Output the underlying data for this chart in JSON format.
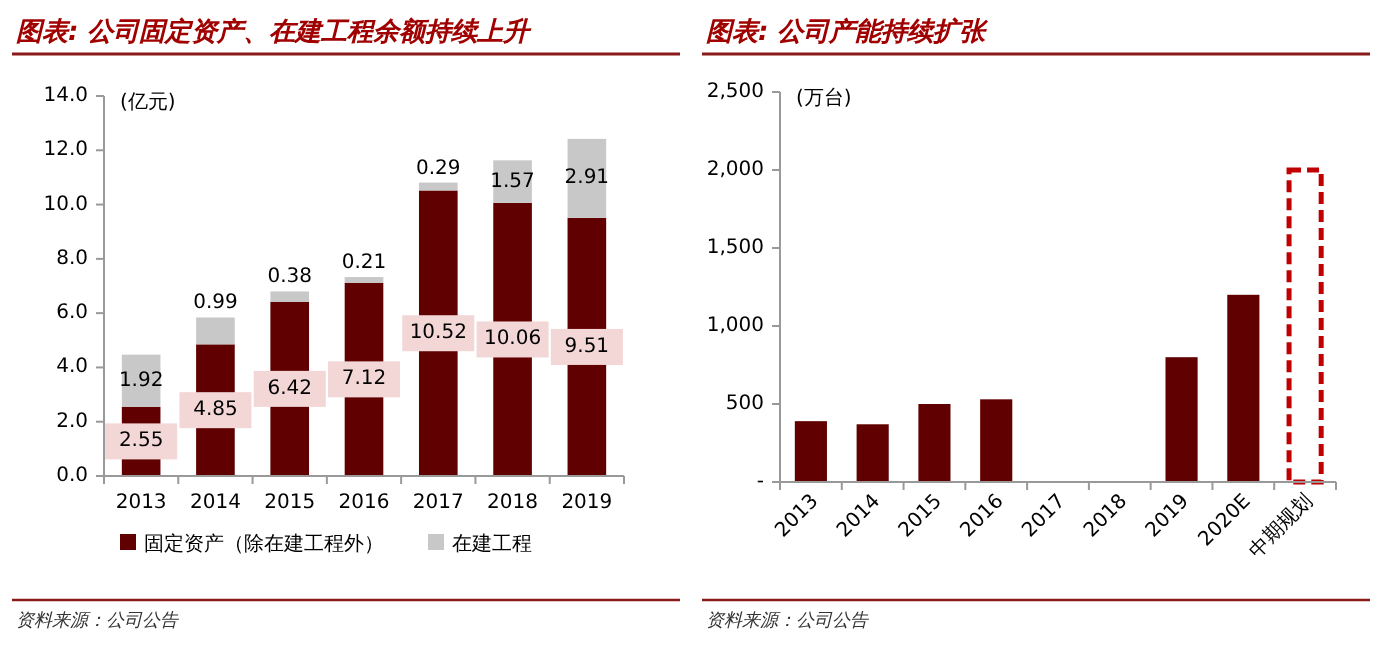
{
  "chart_data": [
    {
      "type": "bar",
      "title": "图表: 公司固定资产、在建工程余额持续上升",
      "ylabel": "(亿元)",
      "categories": [
        "2013",
        "2014",
        "2015",
        "2016",
        "2017",
        "2018",
        "2019"
      ],
      "stacked": true,
      "series": [
        {
          "name": "固定资产（除在建工程外）",
          "color": "#600000",
          "values": [
            2.55,
            4.85,
            6.42,
            7.12,
            10.52,
            10.06,
            9.51
          ]
        },
        {
          "name": "在建工程",
          "color": "#c8c8c8",
          "values": [
            1.92,
            0.99,
            0.38,
            0.21,
            0.29,
            1.57,
            2.91
          ]
        }
      ],
      "ylim": [
        0,
        14
      ],
      "yticks": [
        {
          "value": 0,
          "label": "0.0"
        },
        {
          "value": 2,
          "label": "2.0"
        },
        {
          "value": 4,
          "label": "4.0"
        },
        {
          "value": 6,
          "label": "6.0"
        },
        {
          "value": 8,
          "label": "8.0"
        },
        {
          "value": 10,
          "label": "10.0"
        },
        {
          "value": 12,
          "label": "12.0"
        },
        {
          "value": 14,
          "label": "14.0"
        }
      ],
      "data_labels": true,
      "legend": "bottom",
      "grid": false,
      "annotations": [
        "资料来源：公司公告"
      ]
    },
    {
      "type": "bar",
      "title": "图表: 公司产能持续扩张",
      "ylabel": "(万台)",
      "categories": [
        "2013",
        "2014",
        "2015",
        "2016",
        "2017",
        "2018",
        "2019",
        "2020E",
        "中期规划"
      ],
      "series": [
        {
          "color": "#600000",
          "values": [
            390,
            370,
            500,
            530,
            null,
            null,
            800,
            1200,
            null
          ]
        },
        {
          "color": "#c00000",
          "line_style": "dashed",
          "values": [
            null,
            null,
            null,
            null,
            null,
            null,
            null,
            null,
            2000
          ]
        }
      ],
      "ylim": [
        0,
        2500
      ],
      "yticks": [
        {
          "value": 0,
          "label": "-"
        },
        {
          "value": 500,
          "label": "500"
        },
        {
          "value": 1000,
          "label": "1,000"
        },
        {
          "value": 1500,
          "label": "1,500"
        },
        {
          "value": 2000,
          "label": "2,000"
        },
        {
          "value": 2500,
          "label": "2,500"
        }
      ],
      "grid": false,
      "annotations": [
        "资料来源：公司公告"
      ]
    }
  ]
}
